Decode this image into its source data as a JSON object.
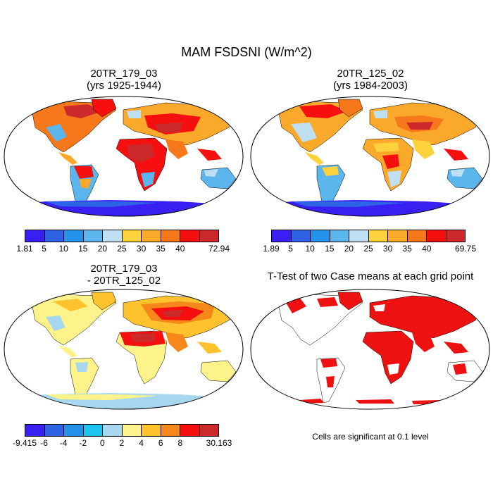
{
  "title": "MAM FSDSNI (W/m^2)",
  "panels": [
    {
      "title1": "20TR_179_03",
      "title2": "(yrs 1925-1944)"
    },
    {
      "title1": "20TR_125_02",
      "title2": "(yrs 1984-2003)"
    },
    {
      "title1": "20TR_179_03",
      "title2": "- 20TR_125_02"
    },
    {
      "title1": "T-Test of two Case means at each grid point",
      "title2": ""
    }
  ],
  "colorbars": [
    {
      "labels": [
        "1.81",
        "5",
        "10",
        "15",
        "20",
        "25",
        "30",
        "35",
        "40",
        "72.94"
      ],
      "colors": [
        "#3a1ff2",
        "#2e63e6",
        "#2392e8",
        "#5ab6ec",
        "#bfdff2",
        "#fdd23c",
        "#fba92b",
        "#f6781a",
        "#f50f0f",
        "#cc2a2a"
      ]
    },
    {
      "labels": [
        "1.89",
        "5",
        "10",
        "15",
        "20",
        "25",
        "30",
        "35",
        "40",
        "69.75"
      ],
      "colors": [
        "#3a1ff2",
        "#2e63e6",
        "#2392e8",
        "#5ab6ec",
        "#bfdff2",
        "#fdd23c",
        "#fba92b",
        "#f6781a",
        "#f50f0f",
        "#cc2a2a"
      ]
    },
    {
      "labels": [
        "-9.415",
        "-6",
        "-4",
        "-2",
        "0",
        "2",
        "4",
        "6",
        "8",
        "30.163"
      ],
      "colors": [
        "#3a1ff2",
        "#2e63e6",
        "#2392e8",
        "#1fc3f0",
        "#a6d7ef",
        "#fdf38a",
        "#fdc22d",
        "#f6871a",
        "#f50f0f",
        "#cc2a2a"
      ]
    }
  ],
  "note": "Cells are significant at 0.1 level",
  "colors": {
    "significant": "#ee1111",
    "land_outline": "#000000",
    "ocean": "#ffffff"
  }
}
